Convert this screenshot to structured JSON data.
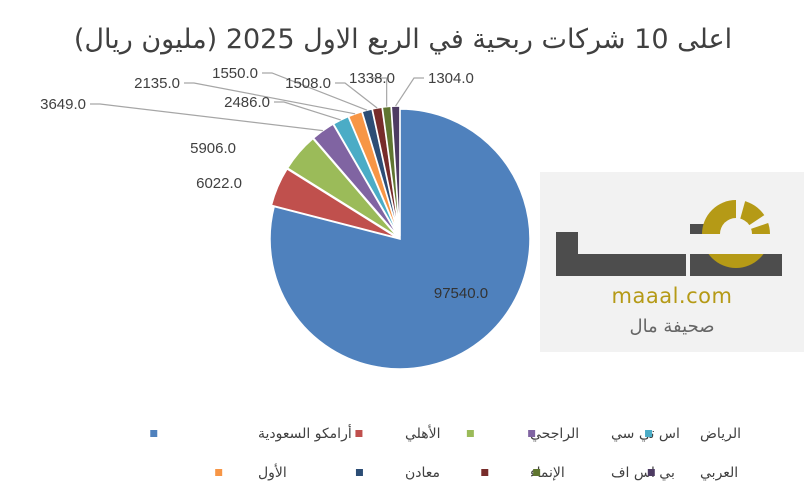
{
  "chart_data": {
    "type": "pie",
    "title": "اعلى 10 شركات ربحية في الربع الاول 2025 (مليون ريال)",
    "slices": [
      {
        "label": "أرامكو السعودية",
        "value": 97540.0,
        "display": "97540.0",
        "color": "#4f81bd"
      },
      {
        "label": "الأهلي",
        "value": 6022.0,
        "display": "6022.0",
        "color": "#c0504d"
      },
      {
        "label": "الراجحي",
        "value": 5906.0,
        "display": "5906.0",
        "color": "#9bbb59"
      },
      {
        "label": "اس تي سي",
        "value": 3649.0,
        "display": "3649.0",
        "color": "#8064a2"
      },
      {
        "label": "الرياض",
        "value": 2486.0,
        "display": "2486.0",
        "color": "#4bacc6"
      },
      {
        "label": "الأول",
        "value": 2135.0,
        "display": "2135.0",
        "color": "#f79646"
      },
      {
        "label": "معادن",
        "value": 1550.0,
        "display": "1550.0",
        "color": "#2c4d75"
      },
      {
        "label": "الإنماء",
        "value": 1508.0,
        "display": "1508.0",
        "color": "#772c2a"
      },
      {
        "label": "بي اس اف",
        "value": 1338.0,
        "display": "1338.0",
        "color": "#5f7530"
      },
      {
        "label": "العربي",
        "value": 1304.0,
        "display": "1304.0",
        "color": "#4d3b62"
      }
    ],
    "legend_position": "bottom"
  },
  "logo": {
    "url_text": "maaal.com",
    "tagline": "صحيفة مال",
    "brand_color": "#b59a16",
    "mark_color": "#4d4d4d"
  }
}
